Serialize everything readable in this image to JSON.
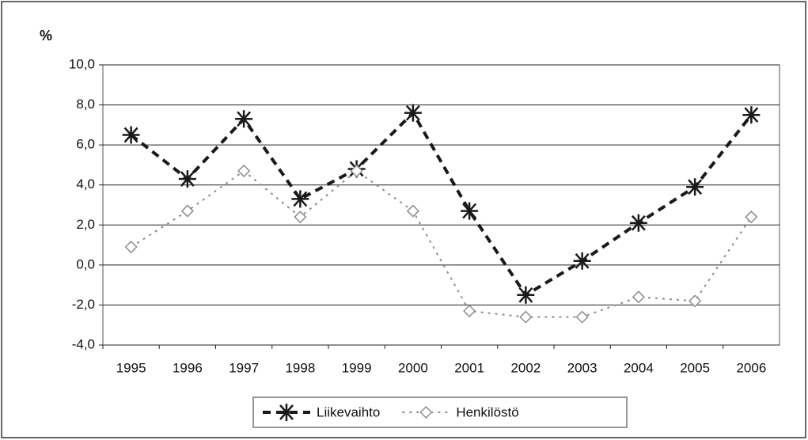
{
  "chart_data": {
    "type": "line",
    "y_label": "%",
    "categories": [
      "1995",
      "1996",
      "1997",
      "1998",
      "1999",
      "2000",
      "2001",
      "2002",
      "2003",
      "2004",
      "2005",
      "2006"
    ],
    "series": [
      {
        "name": "Liikevaihto",
        "color": "#1a1a1a",
        "marker": "asterisk",
        "values": [
          6.5,
          4.3,
          7.3,
          3.3,
          4.8,
          7.6,
          2.7,
          -1.5,
          0.2,
          2.1,
          3.9,
          7.5
        ]
      },
      {
        "name": "Henkilöstö",
        "color": "#8c8c8c",
        "marker": "diamond",
        "values": [
          0.9,
          2.7,
          4.7,
          2.4,
          4.7,
          2.7,
          -2.3,
          -2.6,
          -2.6,
          -1.6,
          -1.8,
          2.4
        ]
      }
    ],
    "ylim": [
      -4,
      10
    ],
    "yticks": [
      {
        "value": -4,
        "label": "-4,0"
      },
      {
        "value": -2,
        "label": "-2,0"
      },
      {
        "value": 0,
        "label": "0,0"
      },
      {
        "value": 2,
        "label": "2,0"
      },
      {
        "value": 4,
        "label": "4,0"
      },
      {
        "value": 6,
        "label": "6,0"
      },
      {
        "value": 8,
        "label": "8,0"
      },
      {
        "value": 10,
        "label": "10,0"
      }
    ],
    "grid": true,
    "legend": "bottom"
  }
}
